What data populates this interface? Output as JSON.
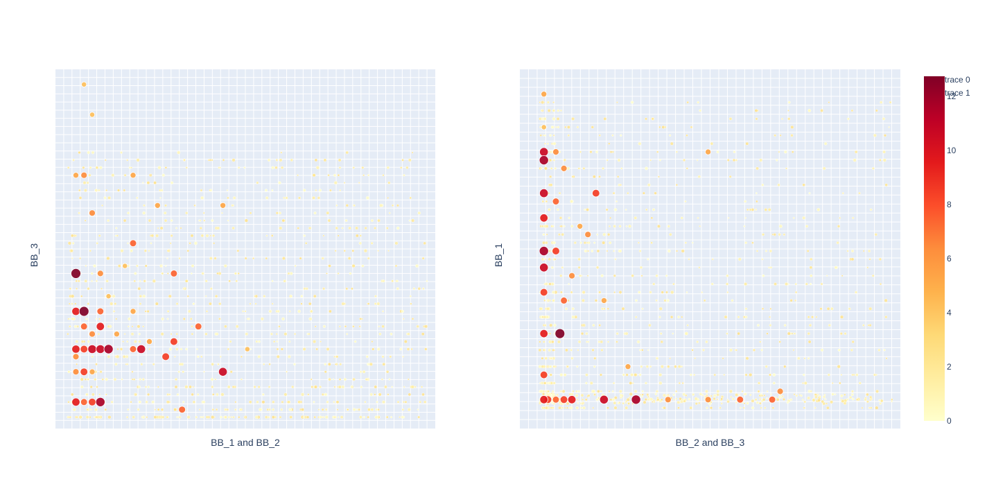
{
  "chart_data": [
    {
      "type": "scatter",
      "panel": "left",
      "xlabel": "BB_1 and BB_2",
      "ylabel": "BB_3",
      "grid": true,
      "tick_labels_visible": false,
      "marker_color_scale": "YlOrRd",
      "marker_color_range": [
        0,
        12
      ],
      "points": [
        {
          "x": 1,
          "y": 2,
          "v": 9
        },
        {
          "x": 2,
          "y": 2,
          "v": 7
        },
        {
          "x": 3,
          "y": 2,
          "v": 8
        },
        {
          "x": 4,
          "y": 2,
          "v": 11
        },
        {
          "x": 1,
          "y": 6,
          "v": 6
        },
        {
          "x": 2,
          "y": 6,
          "v": 8
        },
        {
          "x": 3,
          "y": 6,
          "v": 5
        },
        {
          "x": 1,
          "y": 8,
          "v": 6
        },
        {
          "x": 1,
          "y": 9,
          "v": 9
        },
        {
          "x": 2,
          "y": 9,
          "v": 8
        },
        {
          "x": 3,
          "y": 9,
          "v": 10
        },
        {
          "x": 4,
          "y": 9,
          "v": 10
        },
        {
          "x": 5,
          "y": 9,
          "v": 11
        },
        {
          "x": 8,
          "y": 9,
          "v": 7
        },
        {
          "x": 9,
          "y": 9,
          "v": 10
        },
        {
          "x": 12,
          "y": 8,
          "v": 8
        },
        {
          "x": 2,
          "y": 12,
          "v": 7
        },
        {
          "x": 4,
          "y": 12,
          "v": 9
        },
        {
          "x": 16,
          "y": 12,
          "v": 7
        },
        {
          "x": 1,
          "y": 14,
          "v": 9
        },
        {
          "x": 2,
          "y": 14,
          "v": 12
        },
        {
          "x": 4,
          "y": 14,
          "v": 7
        },
        {
          "x": 8,
          "y": 14,
          "v": 5
        },
        {
          "x": 1,
          "y": 19,
          "v": 12
        },
        {
          "x": 4,
          "y": 19,
          "v": 6
        },
        {
          "x": 13,
          "y": 19,
          "v": 7
        },
        {
          "x": 8,
          "y": 23,
          "v": 7
        },
        {
          "x": 3,
          "y": 27,
          "v": 6
        },
        {
          "x": 11,
          "y": 28,
          "v": 5
        },
        {
          "x": 19,
          "y": 28,
          "v": 5
        },
        {
          "x": 1,
          "y": 32,
          "v": 5
        },
        {
          "x": 2,
          "y": 32,
          "v": 6
        },
        {
          "x": 8,
          "y": 32,
          "v": 5
        },
        {
          "x": 19,
          "y": 6,
          "v": 10
        },
        {
          "x": 14,
          "y": 1,
          "v": 7
        },
        {
          "x": 13,
          "y": 10,
          "v": 8
        },
        {
          "x": 3,
          "y": 40,
          "v": 4
        },
        {
          "x": 2,
          "y": 44,
          "v": 4
        },
        {
          "x": 3,
          "y": 11,
          "v": 6
        },
        {
          "x": 6,
          "y": 11,
          "v": 5
        },
        {
          "x": 10,
          "y": 10,
          "v": 5
        },
        {
          "x": 22,
          "y": 9,
          "v": 4
        },
        {
          "x": 7,
          "y": 20,
          "v": 4
        },
        {
          "x": 5,
          "y": 16,
          "v": 4
        }
      ]
    },
    {
      "type": "scatter",
      "panel": "right",
      "xlabel": "BB_2 and BB_3",
      "ylabel": "BB_1",
      "grid": true,
      "tick_labels_visible": false,
      "marker_color_scale": "YlOrRd",
      "marker_color_range": [
        0,
        12
      ],
      "points": [
        {
          "x": 0.5,
          "y": 31,
          "v": 10
        },
        {
          "x": 0.5,
          "y": 30,
          "v": 11
        },
        {
          "x": 0.5,
          "y": 26,
          "v": 10
        },
        {
          "x": 0.5,
          "y": 23,
          "v": 9
        },
        {
          "x": 0.5,
          "y": 19,
          "v": 11
        },
        {
          "x": 0.5,
          "y": 17,
          "v": 10
        },
        {
          "x": 0.5,
          "y": 14,
          "v": 8
        },
        {
          "x": 0.5,
          "y": 9,
          "v": 9
        },
        {
          "x": 0.5,
          "y": 4,
          "v": 8
        },
        {
          "x": 0.5,
          "y": 1,
          "v": 9
        },
        {
          "x": 2.5,
          "y": 9,
          "v": 12
        },
        {
          "x": 2,
          "y": 19,
          "v": 8
        },
        {
          "x": 2,
          "y": 25,
          "v": 7
        },
        {
          "x": 2,
          "y": 31,
          "v": 6
        },
        {
          "x": 3,
          "y": 13,
          "v": 7
        },
        {
          "x": 4,
          "y": 1,
          "v": 9
        },
        {
          "x": 6,
          "y": 21,
          "v": 6
        },
        {
          "x": 8,
          "y": 1,
          "v": 10
        },
        {
          "x": 12,
          "y": 1,
          "v": 11
        },
        {
          "x": 7,
          "y": 26,
          "v": 8
        },
        {
          "x": 3,
          "y": 1,
          "v": 8
        },
        {
          "x": 1,
          "y": 1,
          "v": 8
        },
        {
          "x": 2,
          "y": 1,
          "v": 7
        },
        {
          "x": 16,
          "y": 1,
          "v": 6
        },
        {
          "x": 25,
          "y": 1,
          "v": 7
        },
        {
          "x": 29,
          "y": 1,
          "v": 7
        },
        {
          "x": 30,
          "y": 2,
          "v": 6
        },
        {
          "x": 21,
          "y": 1,
          "v": 6
        },
        {
          "x": 4,
          "y": 16,
          "v": 6
        },
        {
          "x": 5,
          "y": 22,
          "v": 5
        },
        {
          "x": 3,
          "y": 29,
          "v": 6
        },
        {
          "x": 21,
          "y": 31,
          "v": 5
        },
        {
          "x": 11,
          "y": 5,
          "v": 5
        },
        {
          "x": 0.5,
          "y": 38,
          "v": 5
        },
        {
          "x": 0.5,
          "y": 34,
          "v": 4
        },
        {
          "x": 8,
          "y": 13,
          "v": 5
        }
      ]
    }
  ],
  "legend": {
    "items": [
      "trace 0",
      "trace 1"
    ]
  },
  "colorbar": {
    "ticks": [
      "0",
      "2",
      "4",
      "6",
      "8",
      "10",
      "12"
    ],
    "colors": [
      "#ffffcc",
      "#ffeda0",
      "#fed976",
      "#feb24c",
      "#fd8d3c",
      "#fc4e2a",
      "#e31a1c",
      "#bd0026",
      "#800026"
    ]
  }
}
